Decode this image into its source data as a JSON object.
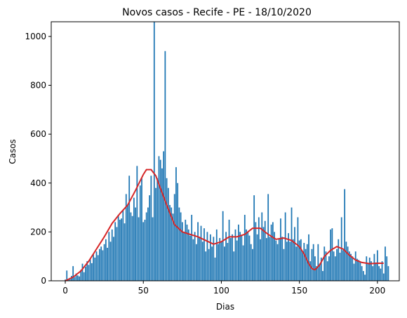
{
  "chart_data": {
    "type": "bar",
    "title": "Novos casos - Recife - PE - 18/10/2020",
    "xlabel": "Dias",
    "ylabel": "Casos",
    "xlim": [
      -9,
      214
    ],
    "ylim": [
      0,
      1060
    ],
    "xticks": [
      0,
      50,
      100,
      150,
      200
    ],
    "yticks": [
      0,
      200,
      400,
      600,
      800,
      1000
    ],
    "grid": false,
    "legend": "none",
    "bar_color": "#1f77b4",
    "line_color": "#d62728",
    "series": [
      {
        "type": "bar",
        "x_start": 0,
        "values": [
          5,
          42,
          8,
          12,
          20,
          60,
          15,
          30,
          22,
          18,
          45,
          70,
          35,
          58,
          80,
          65,
          90,
          72,
          110,
          95,
          120,
          105,
          130,
          140,
          125,
          150,
          170,
          135,
          200,
          160,
          210,
          180,
          240,
          220,
          270,
          250,
          255,
          290,
          235,
          355,
          310,
          430,
          280,
          265,
          340,
          300,
          470,
          260,
          390,
          420,
          240,
          250,
          280,
          300,
          350,
          430,
          260,
          1060,
          380,
          420,
          510,
          495,
          460,
          530,
          940,
          420,
          380,
          310,
          300,
          275,
          355,
          465,
          400,
          300,
          280,
          240,
          200,
          250,
          230,
          210,
          185,
          270,
          170,
          200,
          150,
          240,
          180,
          225,
          160,
          215,
          120,
          200,
          130,
          190,
          140,
          180,
          95,
          210,
          150,
          175,
          160,
          285,
          140,
          200,
          155,
          250,
          175,
          190,
          120,
          210,
          165,
          230,
          200,
          185,
          145,
          270,
          210,
          200,
          185,
          150,
          130,
          350,
          240,
          190,
          260,
          170,
          280,
          220,
          245,
          175,
          355,
          180,
          230,
          240,
          200,
          165,
          150,
          170,
          255,
          180,
          130,
          280,
          160,
          195,
          160,
          300,
          170,
          220,
          140,
          260,
          165,
          170,
          120,
          155,
          130,
          150,
          190,
          80,
          130,
          150,
          100,
          60,
          150,
          70,
          95,
          40,
          140,
          120,
          80,
          100,
          210,
          215,
          120,
          100,
          130,
          170,
          115,
          260,
          125,
          375,
          160,
          140,
          120,
          110,
          100,
          70,
          120,
          90,
          85,
          75,
          60,
          40,
          25,
          100,
          70,
          95,
          80,
          60,
          110,
          75,
          125,
          60,
          50,
          80,
          30,
          140,
          100,
          60
        ]
      },
      {
        "type": "line",
        "x": [
          0,
          5,
          10,
          15,
          20,
          25,
          30,
          35,
          40,
          45,
          50,
          52,
          55,
          58,
          60,
          65,
          70,
          75,
          80,
          85,
          90,
          95,
          100,
          105,
          110,
          115,
          120,
          125,
          130,
          135,
          140,
          145,
          150,
          153,
          156,
          158,
          160,
          163,
          166,
          170,
          174,
          178,
          182,
          186,
          190,
          195,
          200,
          204
        ],
        "values": [
          0,
          15,
          40,
          80,
          130,
          180,
          235,
          275,
          310,
          370,
          435,
          455,
          455,
          430,
          395,
          310,
          230,
          200,
          190,
          180,
          165,
          150,
          160,
          180,
          180,
          190,
          215,
          215,
          190,
          170,
          175,
          165,
          140,
          110,
          70,
          50,
          45,
          65,
          100,
          125,
          140,
          130,
          105,
          85,
          75,
          70,
          72,
          72
        ]
      }
    ]
  }
}
